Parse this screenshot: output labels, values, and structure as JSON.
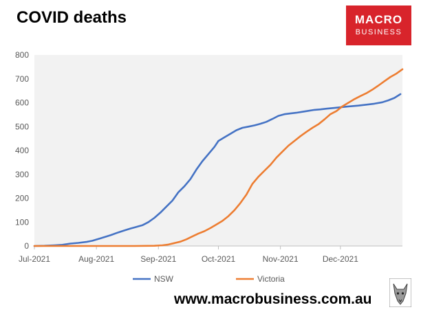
{
  "title": "COVID deaths",
  "logo": {
    "line1": "MACRO",
    "line2": "BUSINESS"
  },
  "footer": {
    "url": "www.macrobusiness.com.au"
  },
  "icons": {
    "logo": "macrobusiness-logo",
    "mascot": "wolf-mascot-icon"
  },
  "colors": {
    "nsw": "#4472c4",
    "victoria": "#ed7d31",
    "logo_bg": "#d8242b"
  },
  "chart_data": {
    "type": "line",
    "title": "COVID deaths",
    "xlabel": "",
    "ylabel": "",
    "ylim": [
      0,
      800
    ],
    "yticks": [
      "0",
      "100",
      "200",
      "300",
      "400",
      "500",
      "600",
      "700",
      "800"
    ],
    "xtick_labels": [
      "Jul-2021",
      "Aug-2021",
      "Sep-2021",
      "Oct-2021",
      "Nov-2021",
      "Dec-2021"
    ],
    "xtick_days": [
      0,
      31,
      62,
      92,
      123,
      153
    ],
    "xlim_days": [
      0,
      184
    ],
    "grid": false,
    "legend_position": "bottom",
    "series": [
      {
        "name": "NSW",
        "color": "#4472c4",
        "points": [
          [
            0,
            0
          ],
          [
            5,
            1
          ],
          [
            10,
            3
          ],
          [
            14,
            5
          ],
          [
            18,
            10
          ],
          [
            22,
            13
          ],
          [
            26,
            17
          ],
          [
            29,
            22
          ],
          [
            33,
            32
          ],
          [
            38,
            45
          ],
          [
            42,
            57
          ],
          [
            45,
            65
          ],
          [
            48,
            73
          ],
          [
            51,
            80
          ],
          [
            54,
            87
          ],
          [
            57,
            100
          ],
          [
            60,
            118
          ],
          [
            63,
            140
          ],
          [
            66,
            165
          ],
          [
            69,
            190
          ],
          [
            72,
            225
          ],
          [
            75,
            250
          ],
          [
            78,
            280
          ],
          [
            81,
            320
          ],
          [
            84,
            355
          ],
          [
            87,
            385
          ],
          [
            90,
            415
          ],
          [
            92,
            440
          ],
          [
            95,
            455
          ],
          [
            98,
            470
          ],
          [
            101,
            485
          ],
          [
            104,
            495
          ],
          [
            107,
            500
          ],
          [
            110,
            505
          ],
          [
            113,
            512
          ],
          [
            116,
            520
          ],
          [
            119,
            532
          ],
          [
            122,
            545
          ],
          [
            125,
            552
          ],
          [
            128,
            555
          ],
          [
            131,
            558
          ],
          [
            134,
            562
          ],
          [
            137,
            566
          ],
          [
            140,
            570
          ],
          [
            143,
            572
          ],
          [
            146,
            575
          ],
          [
            150,
            578
          ],
          [
            154,
            582
          ],
          [
            158,
            585
          ],
          [
            162,
            588
          ],
          [
            166,
            592
          ],
          [
            170,
            596
          ],
          [
            174,
            602
          ],
          [
            177,
            610
          ],
          [
            180,
            620
          ],
          [
            183,
            636
          ]
        ]
      },
      {
        "name": "Victoria",
        "color": "#ed7d31",
        "points": [
          [
            0,
            0
          ],
          [
            30,
            0
          ],
          [
            50,
            0
          ],
          [
            60,
            1
          ],
          [
            64,
            3
          ],
          [
            67,
            6
          ],
          [
            70,
            12
          ],
          [
            73,
            18
          ],
          [
            76,
            28
          ],
          [
            79,
            40
          ],
          [
            82,
            52
          ],
          [
            85,
            62
          ],
          [
            88,
            75
          ],
          [
            91,
            90
          ],
          [
            94,
            105
          ],
          [
            97,
            125
          ],
          [
            100,
            150
          ],
          [
            103,
            180
          ],
          [
            106,
            215
          ],
          [
            109,
            260
          ],
          [
            112,
            290
          ],
          [
            115,
            315
          ],
          [
            118,
            340
          ],
          [
            121,
            370
          ],
          [
            124,
            395
          ],
          [
            127,
            420
          ],
          [
            130,
            440
          ],
          [
            133,
            460
          ],
          [
            136,
            478
          ],
          [
            139,
            495
          ],
          [
            142,
            510
          ],
          [
            145,
            530
          ],
          [
            148,
            552
          ],
          [
            151,
            565
          ],
          [
            154,
            585
          ],
          [
            157,
            600
          ],
          [
            160,
            615
          ],
          [
            163,
            628
          ],
          [
            166,
            640
          ],
          [
            169,
            655
          ],
          [
            172,
            672
          ],
          [
            175,
            690
          ],
          [
            178,
            708
          ],
          [
            181,
            722
          ],
          [
            184,
            740
          ]
        ]
      }
    ]
  }
}
